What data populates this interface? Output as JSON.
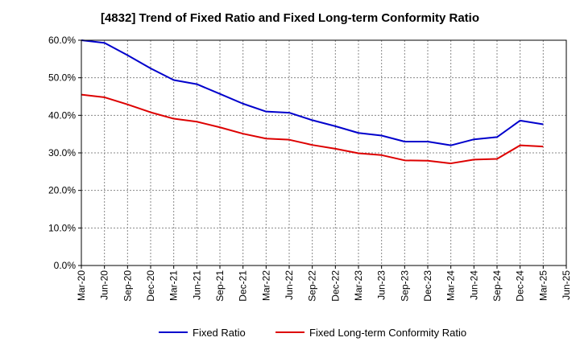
{
  "chart_data": {
    "type": "line",
    "title": "[4832]  Trend of Fixed Ratio and Fixed Long-term Conformity Ratio",
    "xlabel": "",
    "ylabel": "",
    "x": [
      "Mar-20",
      "Jun-20",
      "Sep-20",
      "Dec-20",
      "Mar-21",
      "Jun-21",
      "Sep-21",
      "Dec-21",
      "Mar-22",
      "Jun-22",
      "Sep-22",
      "Dec-22",
      "Mar-23",
      "Jun-23",
      "Sep-23",
      "Dec-23",
      "Mar-24",
      "Jun-24",
      "Sep-24",
      "Dec-24",
      "Mar-25"
    ],
    "x_tick_labels": [
      "Mar-20",
      "Jun-20",
      "Sep-20",
      "Dec-20",
      "Mar-21",
      "Jun-21",
      "Sep-21",
      "Dec-21",
      "Mar-22",
      "Jun-22",
      "Sep-22",
      "Dec-22",
      "Mar-23",
      "Jun-23",
      "Sep-23",
      "Dec-23",
      "Mar-24",
      "Jun-24",
      "Sep-24",
      "Dec-24",
      "Mar-25",
      "Jun-25"
    ],
    "y_ticks": [
      0,
      10,
      20,
      30,
      40,
      50,
      60
    ],
    "y_tick_labels": [
      "0.0%",
      "10.0%",
      "20.0%",
      "30.0%",
      "40.0%",
      "50.0%",
      "60.0%"
    ],
    "ylim": [
      0,
      60
    ],
    "grid": true,
    "legend_position": "bottom",
    "series": [
      {
        "name": "Fixed Ratio",
        "color": "#0000cc",
        "values": [
          60.0,
          59.3,
          56.0,
          52.5,
          49.4,
          48.3,
          45.7,
          43.1,
          41.0,
          40.7,
          38.7,
          37.1,
          35.3,
          34.6,
          33.0,
          33.0,
          32.0,
          33.6,
          34.2,
          38.6,
          37.6
        ]
      },
      {
        "name": "Fixed Long-term Conformity Ratio",
        "color": "#dd0000",
        "values": [
          45.5,
          44.8,
          42.9,
          40.8,
          39.1,
          38.3,
          36.8,
          35.1,
          33.8,
          33.5,
          32.1,
          31.1,
          29.9,
          29.4,
          28.0,
          27.9,
          27.2,
          28.2,
          28.4,
          32.0,
          31.7
        ]
      }
    ]
  }
}
